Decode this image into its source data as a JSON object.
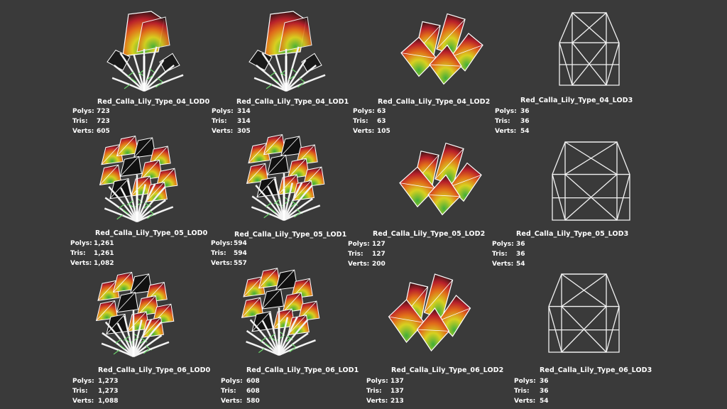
{
  "grid": [
    {
      "name": "Red_Calla_Lily_Type_04_LOD0",
      "polys": "723",
      "tris": "723",
      "verts": "605",
      "kind": "leafy"
    },
    {
      "name": "Red_Calla_Lily_Type_04_LOD1",
      "polys": "314",
      "tris": "314",
      "verts": "305",
      "kind": "leafy"
    },
    {
      "name": "Red_Calla_Lily_Type_04_LOD2",
      "polys": "63",
      "tris": "63",
      "verts": "105",
      "kind": "cards"
    },
    {
      "name": "Red_Calla_Lily_Type_04_LOD3",
      "polys": "36",
      "tris": "36",
      "verts": "54",
      "kind": "box"
    },
    {
      "name": "Red_Calla_Lily_Type_05_LOD0",
      "polys": "1,261",
      "tris": "1,261",
      "verts": "1,082",
      "kind": "bush"
    },
    {
      "name": "Red_Calla_Lily_Type_05_LOD1",
      "polys": "594",
      "tris": "594",
      "verts": "557",
      "kind": "bush"
    },
    {
      "name": "Red_Calla_Lily_Type_05_LOD2",
      "polys": "127",
      "tris": "127",
      "verts": "200",
      "kind": "cards"
    },
    {
      "name": "Red_Calla_Lily_Type_05_LOD3",
      "polys": "36",
      "tris": "36",
      "verts": "54",
      "kind": "box"
    },
    {
      "name": "Red_Calla_Lily_Type_06_LOD0",
      "polys": "1,273",
      "tris": "1,273",
      "verts": "1,088",
      "kind": "bush"
    },
    {
      "name": "Red_Calla_Lily_Type_06_LOD1",
      "polys": "608",
      "tris": "608",
      "verts": "580",
      "kind": "bush"
    },
    {
      "name": "Red_Calla_Lily_Type_06_LOD2",
      "polys": "137",
      "tris": "137",
      "verts": "213",
      "kind": "cards"
    },
    {
      "name": "Red_Calla_Lily_Type_06_LOD3",
      "polys": "36",
      "tris": "36",
      "verts": "54",
      "kind": "box"
    }
  ],
  "labels": {
    "polys": "Polys:",
    "tris": "Tris:",
    "verts": "Verts:"
  }
}
